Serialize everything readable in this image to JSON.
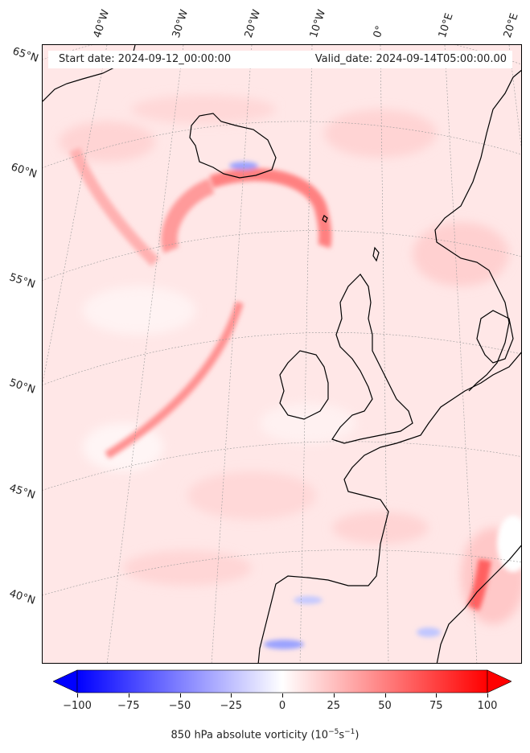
{
  "header": {
    "start_date": "Start date: 2024-09-12_00:00:00",
    "valid_date": "Valid_date: 2024-09-14T05:00:00.00"
  },
  "map": {
    "projection": "conic",
    "field": "850 hPa absolute vorticity",
    "lat_labels": [
      "65°N",
      "60°N",
      "55°N",
      "50°N",
      "45°N",
      "40°N"
    ],
    "lon_labels": [
      "40°W",
      "30°W",
      "20°W",
      "10°W",
      "0°",
      "10°E",
      "20°E"
    ],
    "gridlines": true,
    "colors": {
      "ocean_land_fill": "#ffe9e9",
      "coast": "#000000",
      "strong_positive": "#ff3030",
      "negative": "#3040ff"
    }
  },
  "colorbar": {
    "min": -100,
    "max": 100,
    "cmap": "bwr",
    "extend": "both",
    "ticks": [
      "−100",
      "−75",
      "−50",
      "−25",
      "0",
      "25",
      "50",
      "75",
      "100"
    ],
    "label_prefix": "850 hPa absolute vorticity (10",
    "label_exp1": "−5",
    "label_mid": "s",
    "label_exp2": "−1",
    "label_suffix": ")"
  }
}
